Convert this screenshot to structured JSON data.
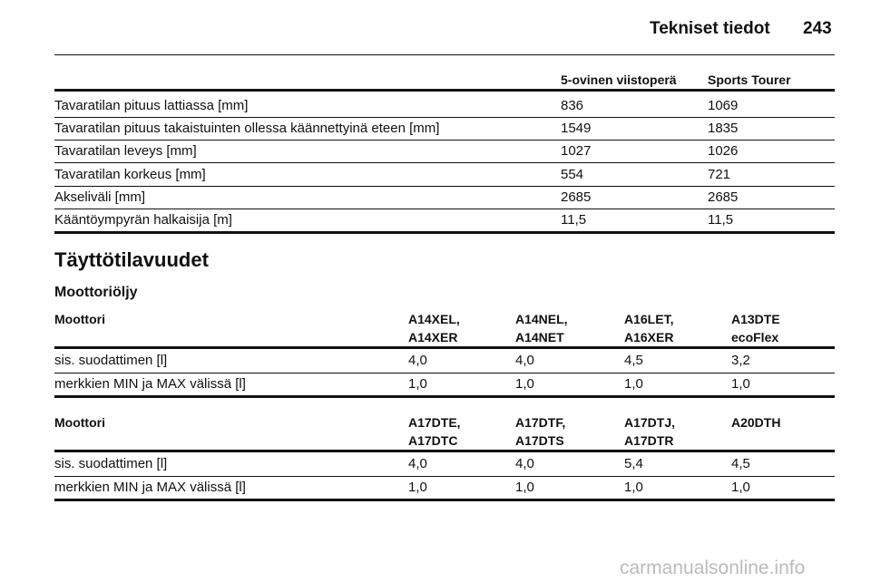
{
  "header": {
    "title": "Tekniset tiedot",
    "page": "243"
  },
  "table1": {
    "columns": [
      "5-ovinen viistoperä",
      "Sports Tourer"
    ],
    "rows": [
      [
        "Tavaratilan pituus lattiassa [mm]",
        "836",
        "1069"
      ],
      [
        "Tavaratilan pituus takaistuinten ollessa käännettyinä eteen [mm]",
        "1549",
        "1835"
      ],
      [
        "Tavaratilan leveys [mm]",
        "1027",
        "1026"
      ],
      [
        "Tavaratilan korkeus [mm]",
        "554",
        "721"
      ],
      [
        "Akseliväli [mm]",
        "2685",
        "2685"
      ],
      [
        "Kääntöympyrän halkaisija [m]",
        "11,5",
        "11,5"
      ]
    ]
  },
  "section": {
    "title": "Täyttötilavuudet",
    "subtitle": "Moottoriöljy"
  },
  "table2": {
    "label": "Moottori",
    "columns": [
      [
        "A14XEL,",
        "A14XER"
      ],
      [
        "A14NEL,",
        "A14NET"
      ],
      [
        "A16LET,",
        "A16XER"
      ],
      [
        "A13DTE",
        "ecoFlex"
      ]
    ],
    "rows": [
      [
        "sis. suodattimen [l]",
        "4,0",
        "4,0",
        "4,5",
        "3,2"
      ],
      [
        "merkkien MIN ja MAX välissä [l]",
        "1,0",
        "1,0",
        "1,0",
        "1,0"
      ]
    ]
  },
  "table3": {
    "label": "Moottori",
    "columns": [
      [
        "A17DTE,",
        "A17DTC"
      ],
      [
        "A17DTF,",
        "A17DTS"
      ],
      [
        "A17DTJ,",
        "A17DTR"
      ],
      [
        "A20DTH"
      ]
    ],
    "rows": [
      [
        "sis. suodattimen [l]",
        "4,0",
        "4,0",
        "5,4",
        "4,5"
      ],
      [
        "merkkien MIN ja MAX välissä [l]",
        "1,0",
        "1,0",
        "1,0",
        "1,0"
      ]
    ]
  },
  "watermark": "carmanualsonline.info"
}
